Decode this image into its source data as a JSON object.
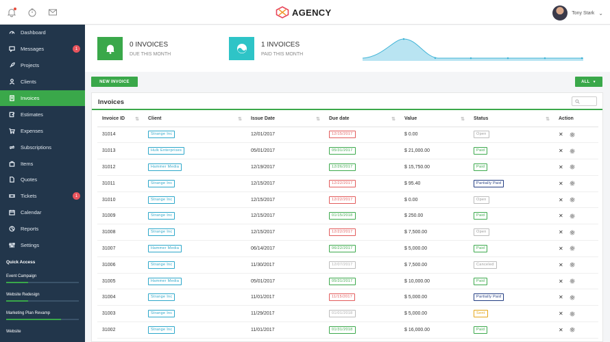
{
  "header": {
    "logo_text": "AGENCY",
    "user_name": "Tony Stark",
    "icons": [
      "bell-icon",
      "timer-icon",
      "mail-icon"
    ]
  },
  "sidebar": {
    "items": [
      {
        "label": "Dashboard",
        "icon": "gauge-icon"
      },
      {
        "label": "Messages",
        "icon": "chat-icon",
        "badge": "1"
      },
      {
        "label": "Projects",
        "icon": "rocket-icon"
      },
      {
        "label": "Clients",
        "icon": "user-icon"
      },
      {
        "label": "Invoices",
        "icon": "document-icon",
        "active": true
      },
      {
        "label": "Estimates",
        "icon": "edit-icon"
      },
      {
        "label": "Expenses",
        "icon": "cart-icon"
      },
      {
        "label": "Subscriptions",
        "icon": "refresh-icon"
      },
      {
        "label": "Items",
        "icon": "box-icon"
      },
      {
        "label": "Quotes",
        "icon": "file-icon"
      },
      {
        "label": "Tickets",
        "icon": "ticket-icon",
        "badge": "1"
      },
      {
        "label": "Calendar",
        "icon": "calendar-icon"
      },
      {
        "label": "Reports",
        "icon": "chart-icon"
      },
      {
        "label": "Settings",
        "icon": "sliders-icon"
      }
    ],
    "quick_access_title": "Quick Access",
    "quick_access": [
      {
        "label": "Event Campaign",
        "progress": 0.3
      },
      {
        "label": "Website Redesign",
        "progress": 0.3
      },
      {
        "label": "Marketing Plan Revamp",
        "progress": 0.75
      },
      {
        "label": "Website",
        "progress": 0
      }
    ]
  },
  "stats": [
    {
      "value": "0 INVOICES",
      "label": "DUE THIS MONTH",
      "color": "#3aa84a",
      "icon": "bell-icon"
    },
    {
      "value": "1 INVOICES",
      "label": "PAID THIS MONTH",
      "color": "#2ec4c7",
      "icon": "wave-icon"
    }
  ],
  "toolbar": {
    "new_invoice_label": "NEW INVOICE",
    "filter_label": "ALL"
  },
  "card": {
    "title": "Invoices"
  },
  "table": {
    "columns": [
      "Invoice ID",
      "Client",
      "Issue Date",
      "Due date",
      "Value",
      "Status",
      "Action"
    ],
    "rows": [
      {
        "id": "31014",
        "client": "Strange Inc",
        "issue": "12/01/2017",
        "due": "12/15/2017",
        "due_state": "red",
        "value": "$ 0.00",
        "status": "Open",
        "status_kind": "open"
      },
      {
        "id": "31013",
        "client": "Hulk Enterprises",
        "issue": "05/01/2017",
        "due": "05/31/2017",
        "due_state": "green",
        "value": "$ 21,000.00",
        "status": "Paid",
        "status_kind": "paid"
      },
      {
        "id": "31012",
        "client": "Hammer Media",
        "issue": "12/19/2017",
        "due": "12/26/2017",
        "due_state": "green",
        "value": "$ 15,750.00",
        "status": "Paid",
        "status_kind": "paid"
      },
      {
        "id": "31011",
        "client": "Strange Inc",
        "issue": "12/15/2017",
        "due": "12/22/2017",
        "due_state": "red",
        "value": "$ 95.40",
        "status": "Partially Paid",
        "status_kind": "partial"
      },
      {
        "id": "31010",
        "client": "Strange Inc",
        "issue": "12/15/2017",
        "due": "12/22/2017",
        "due_state": "red",
        "value": "$ 0.00",
        "status": "Open",
        "status_kind": "open"
      },
      {
        "id": "31009",
        "client": "Strange Inc",
        "issue": "12/15/2017",
        "due": "01/15/2018",
        "due_state": "green",
        "value": "$ 250.00",
        "status": "Paid",
        "status_kind": "paid"
      },
      {
        "id": "31008",
        "client": "Strange Inc",
        "issue": "12/15/2017",
        "due": "12/22/2017",
        "due_state": "red",
        "value": "$ 7,500.00",
        "status": "Open",
        "status_kind": "open"
      },
      {
        "id": "31007",
        "client": "Hammer Media",
        "issue": "06/14/2017",
        "due": "06/22/2017",
        "due_state": "green",
        "value": "$ 5,000.00",
        "status": "Paid",
        "status_kind": "paid"
      },
      {
        "id": "31006",
        "client": "Strange Inc",
        "issue": "11/30/2017",
        "due": "12/07/2017",
        "due_state": "grey",
        "value": "$ 7,500.00",
        "status": "Canceled",
        "status_kind": "canceled"
      },
      {
        "id": "31005",
        "client": "Hammer Media",
        "issue": "05/01/2017",
        "due": "05/31/2017",
        "due_state": "green",
        "value": "$ 10,000.00",
        "status": "Paid",
        "status_kind": "paid"
      },
      {
        "id": "31004",
        "client": "Strange Inc",
        "issue": "11/01/2017",
        "due": "11/15/2017",
        "due_state": "red",
        "value": "$ 5,000.00",
        "status": "Partially Paid",
        "status_kind": "partial"
      },
      {
        "id": "31003",
        "client": "Strange Inc",
        "issue": "11/29/2017",
        "due": "01/01/2018",
        "due_state": "grey",
        "value": "$ 5,000.00",
        "status": "Sent",
        "status_kind": "sent"
      },
      {
        "id": "31002",
        "client": "Strange Inc",
        "issue": "11/01/2017",
        "due": "01/31/2018",
        "due_state": "green",
        "value": "$ 16,000.00",
        "status": "Paid",
        "status_kind": "paid"
      }
    ]
  },
  "colors": {
    "accent": "#3aa84a",
    "sidebar": "#22364b",
    "teal": "#2ec4c7"
  }
}
